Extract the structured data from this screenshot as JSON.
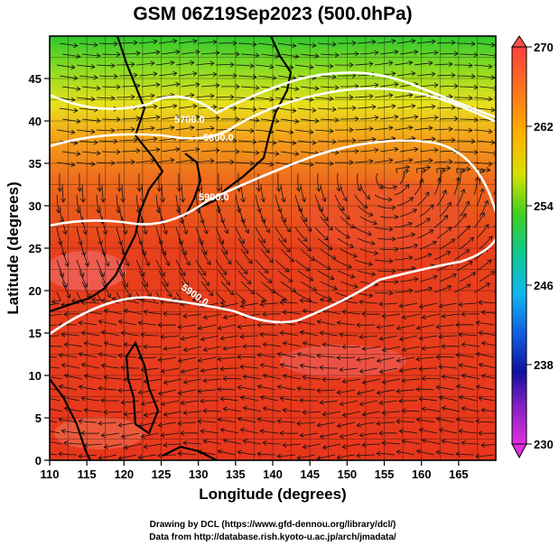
{
  "title": "GSM 06Z19Sep2023 (500.0hPa)",
  "xlabel": "Longitude (degrees)",
  "ylabel": "Latitude  (degrees)",
  "x_ticks": [
    "110",
    "115",
    "120",
    "125",
    "130",
    "135",
    "140",
    "145",
    "150",
    "155",
    "160",
    "165"
  ],
  "y_ticks": [
    "0",
    "5",
    "10",
    "15",
    "20",
    "25",
    "30",
    "35",
    "40",
    "45"
  ],
  "x_range": [
    110,
    170
  ],
  "y_range": [
    0,
    50
  ],
  "colorbar": {
    "ticks": [
      "270",
      "262",
      "254",
      "246",
      "238",
      "230"
    ],
    "range": [
      230,
      270
    ]
  },
  "contour_labels": [
    "5700.0",
    "5800.0",
    "5900.0",
    "5900.0"
  ],
  "credits": {
    "line1": "Drawing by DCL (https://www.gfd-dennou.org/library/dcl/)",
    "line2": "Data from http://database.rish.kyoto-u.ac.jp/arch/jmadata/"
  },
  "colors": {
    "warm": "#e8361c",
    "green": "#33cc33",
    "contour": "#ffffff"
  }
}
